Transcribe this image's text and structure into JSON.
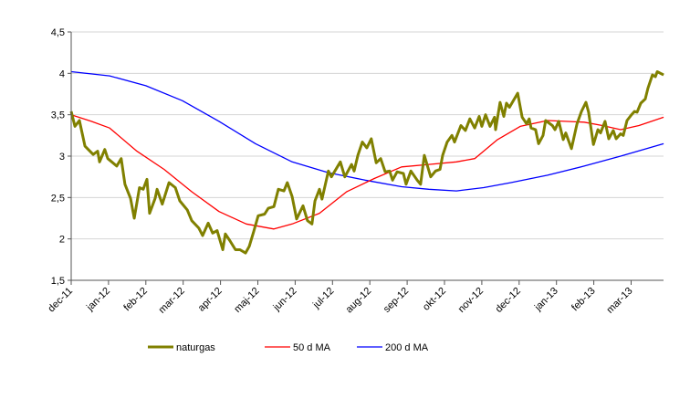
{
  "chart_data": {
    "type": "line",
    "title": "",
    "xlabel": "",
    "ylabel": "",
    "x_unit": "months since dec-11",
    "xlim": [
      0,
      15.87
    ],
    "ylim": [
      1.5,
      4.5
    ],
    "yticks": [
      "1,5",
      "2",
      "2,5",
      "3",
      "3,5",
      "4",
      "4,5"
    ],
    "ytick_values": [
      1.5,
      2,
      2.5,
      3,
      3.5,
      4,
      4.5
    ],
    "xtick_labels": [
      "dec-11",
      "jan-12",
      "feb-12",
      "mar-12",
      "apr-12",
      "maj-12",
      "jun-12",
      "jul-12",
      "aug-12",
      "sep-12",
      "okt-12",
      "nov-12",
      "dec-12",
      "jan-13",
      "feb-13",
      "mar-13"
    ],
    "grid": true,
    "legend_position": "bottom",
    "series": [
      {
        "name": "naturgas",
        "color": "#808000",
        "x": [
          0,
          0.1,
          0.22,
          0.37,
          0.59,
          0.71,
          0.76,
          0.9,
          0.98,
          1.22,
          1.34,
          1.44,
          1.59,
          1.69,
          1.83,
          1.93,
          2.03,
          2.1,
          2.25,
          2.3,
          2.44,
          2.62,
          2.79,
          2.91,
          3.11,
          3.23,
          3.42,
          3.52,
          3.67,
          3.79,
          3.91,
          4.06,
          4.13,
          4.25,
          4.4,
          4.52,
          4.67,
          4.77,
          4.89,
          5.01,
          5.18,
          5.28,
          5.43,
          5.55,
          5.7,
          5.79,
          5.92,
          6.04,
          6.21,
          6.33,
          6.45,
          6.53,
          6.65,
          6.72,
          6.89,
          6.97,
          7.21,
          7.33,
          7.51,
          7.58,
          7.68,
          7.8,
          7.92,
          8.04,
          8.17,
          8.29,
          8.41,
          8.53,
          8.61,
          8.73,
          8.9,
          8.97,
          9.1,
          9.27,
          9.36,
          9.46,
          9.63,
          9.76,
          9.88,
          9.95,
          10.07,
          10.2,
          10.27,
          10.44,
          10.56,
          10.68,
          10.81,
          10.93,
          11.0,
          11.1,
          11.22,
          11.34,
          11.37,
          11.49,
          11.59,
          11.66,
          11.74,
          11.96,
          12.08,
          12.2,
          12.27,
          12.32,
          12.44,
          12.52,
          12.64,
          12.71,
          12.89,
          12.96,
          13.06,
          13.18,
          13.25,
          13.4,
          13.55,
          13.67,
          13.79,
          13.86,
          13.99,
          14.11,
          14.18,
          14.3,
          14.4,
          14.52,
          14.6,
          14.72,
          14.79,
          14.89,
          15.01,
          15.09,
          15.16,
          15.26,
          15.38,
          15.45,
          15.57,
          15.65,
          15.7,
          15.87
        ],
        "y": [
          3.54,
          3.36,
          3.43,
          3.12,
          3.02,
          3.06,
          2.93,
          3.08,
          2.97,
          2.88,
          2.97,
          2.66,
          2.49,
          2.25,
          2.62,
          2.6,
          2.72,
          2.31,
          2.49,
          2.6,
          2.42,
          2.68,
          2.62,
          2.46,
          2.35,
          2.22,
          2.13,
          2.04,
          2.19,
          2.07,
          2.1,
          1.87,
          2.06,
          1.98,
          1.87,
          1.87,
          1.83,
          1.91,
          2.09,
          2.28,
          2.3,
          2.37,
          2.39,
          2.6,
          2.58,
          2.68,
          2.51,
          2.24,
          2.4,
          2.22,
          2.18,
          2.46,
          2.6,
          2.48,
          2.82,
          2.75,
          2.93,
          2.75,
          2.9,
          2.82,
          3.01,
          3.17,
          3.1,
          3.21,
          2.92,
          2.97,
          2.81,
          2.82,
          2.71,
          2.81,
          2.79,
          2.66,
          2.82,
          2.71,
          2.66,
          3.01,
          2.75,
          2.82,
          2.84,
          3.01,
          3.17,
          3.25,
          3.17,
          3.37,
          3.31,
          3.45,
          3.34,
          3.48,
          3.36,
          3.5,
          3.36,
          3.47,
          3.32,
          3.65,
          3.48,
          3.64,
          3.59,
          3.76,
          3.47,
          3.39,
          3.45,
          3.34,
          3.32,
          3.15,
          3.25,
          3.43,
          3.37,
          3.32,
          3.42,
          3.2,
          3.28,
          3.09,
          3.39,
          3.54,
          3.65,
          3.53,
          3.14,
          3.32,
          3.28,
          3.42,
          3.21,
          3.31,
          3.21,
          3.27,
          3.25,
          3.43,
          3.5,
          3.54,
          3.53,
          3.64,
          3.69,
          3.82,
          3.98,
          3.96,
          4.02,
          3.98
        ]
      },
      {
        "name": "50 d MA",
        "color": "#ff0000",
        "x": [
          0,
          0.54,
          1.03,
          1.76,
          2.49,
          3.23,
          3.96,
          4.69,
          5.43,
          5.92,
          6.65,
          7.38,
          8.12,
          8.85,
          9.58,
          10.32,
          10.81,
          11.42,
          12.03,
          12.76,
          13.74,
          14.23,
          14.72,
          15.21,
          15.87
        ],
        "y": [
          3.5,
          3.42,
          3.34,
          3.06,
          2.84,
          2.57,
          2.33,
          2.18,
          2.12,
          2.18,
          2.31,
          2.57,
          2.73,
          2.87,
          2.9,
          2.93,
          2.97,
          3.2,
          3.36,
          3.43,
          3.41,
          3.37,
          3.32,
          3.37,
          3.47
        ]
      },
      {
        "name": "200 d MA",
        "color": "#0000ff",
        "x": [
          0,
          1.03,
          2.0,
          2.98,
          3.96,
          4.94,
          5.92,
          6.89,
          7.87,
          8.85,
          9.58,
          10.32,
          11.05,
          11.78,
          12.76,
          13.74,
          14.72,
          15.87
        ],
        "y": [
          4.02,
          3.97,
          3.85,
          3.67,
          3.42,
          3.15,
          2.93,
          2.8,
          2.71,
          2.63,
          2.6,
          2.58,
          2.62,
          2.68,
          2.77,
          2.88,
          3.0,
          3.15
        ]
      }
    ]
  }
}
